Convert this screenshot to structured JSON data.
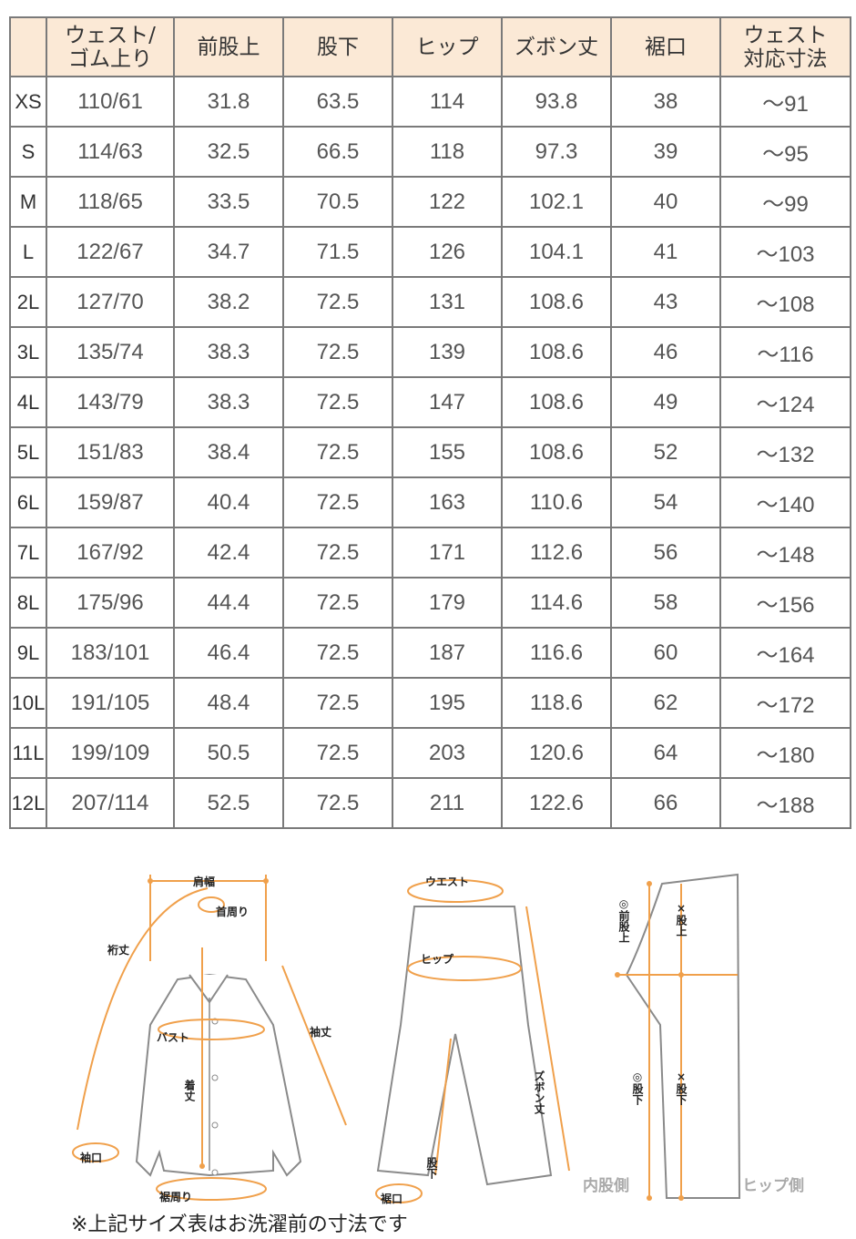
{
  "table": {
    "headers": [
      "",
      "ウェスト/\nゴム上り",
      "前股上",
      "股下",
      "ヒップ",
      "ズボン丈",
      "裾口",
      "ウェスト\n対応寸法"
    ],
    "rows": [
      [
        "XS",
        "110/61",
        "31.8",
        "63.5",
        "114",
        "93.8",
        "38",
        "～91"
      ],
      [
        "S",
        "114/63",
        "32.5",
        "66.5",
        "118",
        "97.3",
        "39",
        "～95"
      ],
      [
        "M",
        "118/65",
        "33.5",
        "70.5",
        "122",
        "102.1",
        "40",
        "～99"
      ],
      [
        "L",
        "122/67",
        "34.7",
        "71.5",
        "126",
        "104.1",
        "41",
        "～103"
      ],
      [
        "2L",
        "127/70",
        "38.2",
        "72.5",
        "131",
        "108.6",
        "43",
        "～108"
      ],
      [
        "3L",
        "135/74",
        "38.3",
        "72.5",
        "139",
        "108.6",
        "46",
        "～116"
      ],
      [
        "4L",
        "143/79",
        "38.3",
        "72.5",
        "147",
        "108.6",
        "49",
        "～124"
      ],
      [
        "5L",
        "151/83",
        "38.4",
        "72.5",
        "155",
        "108.6",
        "52",
        "～132"
      ],
      [
        "6L",
        "159/87",
        "40.4",
        "72.5",
        "163",
        "110.6",
        "54",
        "～140"
      ],
      [
        "7L",
        "167/92",
        "42.4",
        "72.5",
        "171",
        "112.6",
        "56",
        "～148"
      ],
      [
        "8L",
        "175/96",
        "44.4",
        "72.5",
        "179",
        "114.6",
        "58",
        "～156"
      ],
      [
        "9L",
        "183/101",
        "46.4",
        "72.5",
        "187",
        "116.6",
        "60",
        "～164"
      ],
      [
        "10L",
        "191/105",
        "48.4",
        "72.5",
        "195",
        "118.6",
        "62",
        "～172"
      ],
      [
        "11L",
        "199/109",
        "50.5",
        "72.5",
        "203",
        "120.6",
        "64",
        "～180"
      ],
      [
        "12L",
        "207/114",
        "52.5",
        "72.5",
        "211",
        "122.6",
        "66",
        "～188"
      ]
    ]
  },
  "diagram": {
    "shirt": {
      "shoulder": "肩幅",
      "neck": "首周り",
      "yuki": "裄丈",
      "sleeve": "袖丈",
      "bust": "バスト",
      "length": "着丈",
      "cuff": "袖口",
      "hem": "裾周り"
    },
    "pants": {
      "waist": "ウエスト",
      "hip": "ヒップ",
      "pants_length": "ズボン丈",
      "inseam": "股下",
      "hem": "裾口"
    },
    "side": {
      "front_rise": "◎前股上",
      "rise": "×股上",
      "inseam_inner": "◎股下",
      "inseam_outer": "×股下",
      "inner_side": "内股側",
      "hip_side": "ヒップ側"
    }
  },
  "note": "※上記サイズ表はお洗濯前の寸法です",
  "colors": {
    "header_bg": "#fbe9d6",
    "measure_line": "#f0a04b",
    "border": "#7a7a7a"
  }
}
